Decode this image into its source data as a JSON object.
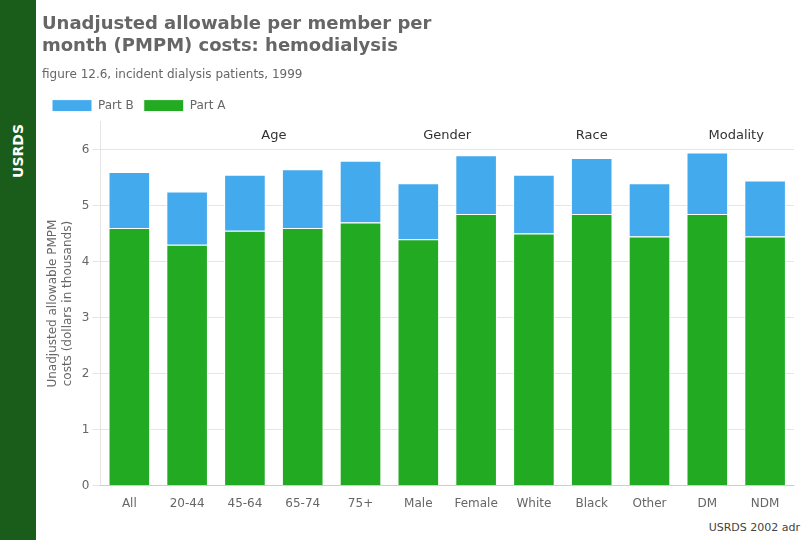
{
  "chart_data": {
    "type": "bar",
    "title": [
      "Unadjusted allowable per member per",
      "month (PMPM) costs: hemodialysis"
    ],
    "subtitle": "figure 12.6, incident dialysis patients, 1999",
    "ylabel": "Unadjusted allowable PMPM\ncosts (dollars in thousands)",
    "categories": [
      "All",
      "20-44",
      "45-64",
      "65-74",
      "75+",
      "Male",
      "Female",
      "White",
      "Black",
      "Other",
      "DM",
      "NDM"
    ],
    "series": [
      {
        "name": "Part A",
        "color": "#22aa22",
        "values": [
          4.6,
          4.3,
          4.55,
          4.6,
          4.7,
          4.4,
          4.85,
          4.5,
          4.85,
          4.45,
          4.85,
          4.45
        ]
      },
      {
        "name": "Part B",
        "color": "#44aaee",
        "values": [
          1.0,
          0.95,
          1.0,
          1.05,
          1.1,
          1.0,
          1.05,
          1.05,
          1.0,
          0.95,
          1.1,
          1.0
        ]
      }
    ],
    "stacked": true,
    "ylim": [
      0,
      6.5
    ],
    "yticks": [
      0,
      1,
      2,
      3,
      4,
      5,
      6
    ],
    "grid": true,
    "legend": "upper left",
    "annotations": [
      {
        "text": "Age",
        "from": "20-44",
        "to": "75+"
      },
      {
        "text": "Gender",
        "from": "Male",
        "to": "Female"
      },
      {
        "text": "Race",
        "from": "White",
        "to": "Other"
      },
      {
        "text": "Modality",
        "from": "DM",
        "to": "NDM"
      }
    ],
    "footer": "USRDS 2002 adr",
    "sidebar_label": "USRDS"
  }
}
